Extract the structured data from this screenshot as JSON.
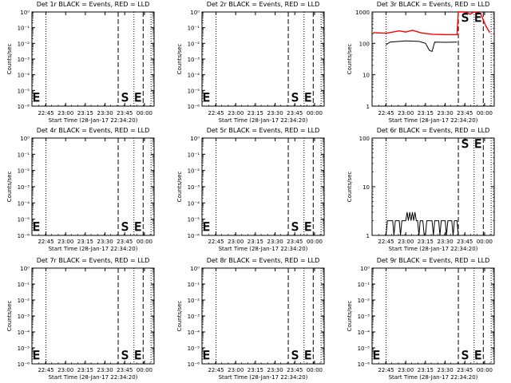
{
  "x_tick_labels": [
    "22:45",
    "23:00",
    "23:15",
    "23:30",
    "23:45",
    "00:00"
  ],
  "x_label": "Start Time (28-Jan-17 22:34:20)",
  "y_label": "Counts/sec",
  "marker_S": "S",
  "marker_E": "E",
  "colors": {
    "events": "#000000",
    "lld": "#ff0000"
  },
  "chart_data": [
    {
      "type": "line",
      "title": "Det 1r BLACK = Events, RED = LLD",
      "y_scale": "log",
      "y_tick_labels": [
        "10⁰",
        "10⁻¹",
        "10⁻²",
        "10⁻³",
        "10⁻⁴",
        "10⁻⁵",
        "10⁻⁶"
      ],
      "ylim_exp": [
        -6,
        0
      ],
      "series": [],
      "x_ticks": [
        "22:45",
        "23:00",
        "23:15",
        "23:30",
        "23:45",
        "00:00"
      ],
      "vlines": {
        "dotted": [
          "22:45",
          "23:52",
          "00:05"
        ],
        "dashed": [
          "23:40",
          "23:59"
        ]
      },
      "xlabel": "Start Time (28-Jan-17 22:34:20)",
      "ylabel": "Counts/sec"
    },
    {
      "type": "line",
      "title": "Det 2r BLACK = Events, RED = LLD",
      "y_scale": "log",
      "y_tick_labels": [
        "10⁰",
        "10⁻¹",
        "10⁻²",
        "10⁻³",
        "10⁻⁴",
        "10⁻⁵",
        "10⁻⁶"
      ],
      "ylim_exp": [
        -6,
        0
      ],
      "series": [],
      "x_ticks": [
        "22:45",
        "23:00",
        "23:15",
        "23:30",
        "23:45",
        "00:00"
      ],
      "vlines": {
        "dotted": [
          "22:45",
          "23:52",
          "00:05"
        ],
        "dashed": [
          "23:40",
          "23:59"
        ]
      },
      "xlabel": "Start Time (28-Jan-17 22:34:20)",
      "ylabel": "Counts/sec"
    },
    {
      "type": "line",
      "title": "Det 3r BLACK = Events, RED = LLD",
      "y_scale": "log",
      "y_tick_labels": [
        "1000",
        "100",
        "10",
        "1"
      ],
      "ylim_exp": [
        0,
        3
      ],
      "series": [
        {
          "color": "#ff0000",
          "points": [
            [
              "22:35",
              220
            ],
            [
              "22:45",
              210
            ],
            [
              "22:55",
              250
            ],
            [
              "23:00",
              230
            ],
            [
              "23:05",
              260
            ],
            [
              "23:12",
              215
            ],
            [
              "23:20",
              195
            ],
            [
              "23:30",
              190
            ],
            [
              "23:39",
              190
            ],
            [
              "23:40",
              1000
            ],
            [
              "23:45",
              1000
            ],
            [
              "23:49",
              850
            ],
            [
              "23:52",
              1000
            ],
            [
              "23:57",
              900
            ],
            [
              "00:01",
              350
            ],
            [
              "00:04",
              220
            ]
          ]
        },
        {
          "color": "#000000",
          "points": [
            [
              "22:45",
              90
            ],
            [
              "22:48",
              110
            ],
            [
              "23:00",
              120
            ],
            [
              "23:10",
              115
            ],
            [
              "23:15",
              100
            ],
            [
              "23:18",
              60
            ],
            [
              "23:20",
              55
            ],
            [
              "23:22",
              110
            ],
            [
              "23:30",
              108
            ],
            [
              "23:39",
              110
            ]
          ]
        }
      ],
      "x_ticks": [
        "22:45",
        "23:00",
        "23:15",
        "23:30",
        "23:45",
        "00:00"
      ],
      "vlines": {
        "dotted": [
          "22:45",
          "23:52",
          "00:05"
        ],
        "dashed": [
          "23:40",
          "23:59"
        ]
      },
      "xlabel": "Start Time (28-Jan-17 22:34:20)",
      "ylabel": "Counts/sec"
    },
    {
      "type": "line",
      "title": "Det 4r BLACK = Events, RED = LLD",
      "y_scale": "log",
      "y_tick_labels": [
        "10⁰",
        "10⁻¹",
        "10⁻²",
        "10⁻³",
        "10⁻⁴",
        "10⁻⁵",
        "10⁻⁶"
      ],
      "ylim_exp": [
        -6,
        0
      ],
      "series": [],
      "x_ticks": [
        "22:45",
        "23:00",
        "23:15",
        "23:30",
        "23:45",
        "00:00"
      ],
      "vlines": {
        "dotted": [
          "22:45",
          "23:52",
          "00:05"
        ],
        "dashed": [
          "23:40",
          "23:59"
        ]
      },
      "xlabel": "Start Time (28-Jan-17 22:34:20)",
      "ylabel": "Counts/sec"
    },
    {
      "type": "line",
      "title": "Det 5r BLACK = Events, RED = LLD",
      "y_scale": "log",
      "y_tick_labels": [
        "10⁰",
        "10⁻¹",
        "10⁻²",
        "10⁻³",
        "10⁻⁴",
        "10⁻⁵",
        "10⁻⁶"
      ],
      "ylim_exp": [
        -6,
        0
      ],
      "series": [],
      "x_ticks": [
        "22:45",
        "23:00",
        "23:15",
        "23:30",
        "23:45",
        "00:00"
      ],
      "vlines": {
        "dotted": [
          "22:45",
          "23:52",
          "00:05"
        ],
        "dashed": [
          "23:40",
          "23:59"
        ]
      },
      "xlabel": "Start Time (28-Jan-17 22:34:20)",
      "ylabel": "Counts/sec"
    },
    {
      "type": "line",
      "title": "Det 6r BLACK = Events, RED = LLD",
      "y_scale": "log",
      "y_tick_labels": [
        "100",
        "10",
        "1"
      ],
      "ylim_exp": [
        0,
        2
      ],
      "series": [
        {
          "color": "#000000",
          "points": [
            [
              "22:45",
              1
            ],
            [
              "22:46",
              2
            ],
            [
              "22:50",
              2
            ],
            [
              "22:51",
              1
            ],
            [
              "22:52",
              2
            ],
            [
              "22:55",
              2
            ],
            [
              "22:56",
              1
            ],
            [
              "22:57",
              2
            ],
            [
              "23:00",
              2
            ],
            [
              "23:01",
              3
            ],
            [
              "23:02",
              2
            ],
            [
              "23:03",
              3
            ],
            [
              "23:04",
              2
            ],
            [
              "23:05",
              3
            ],
            [
              "23:06",
              2
            ],
            [
              "23:07",
              3
            ],
            [
              "23:08",
              2
            ],
            [
              "23:09",
              2
            ],
            [
              "23:10",
              1
            ],
            [
              "23:11",
              2
            ],
            [
              "23:13",
              2
            ],
            [
              "23:14",
              1
            ],
            [
              "23:15",
              1
            ],
            [
              "23:16",
              2
            ],
            [
              "23:20",
              2
            ],
            [
              "23:21",
              1
            ],
            [
              "23:22",
              2
            ],
            [
              "23:25",
              2
            ],
            [
              "23:26",
              1
            ],
            [
              "23:27",
              2
            ],
            [
              "23:30",
              2
            ],
            [
              "23:31",
              1
            ],
            [
              "23:32",
              2
            ],
            [
              "23:35",
              2
            ],
            [
              "23:36",
              1
            ],
            [
              "23:37",
              2
            ],
            [
              "23:39",
              2
            ],
            [
              "23:40",
              1
            ]
          ]
        }
      ],
      "x_ticks": [
        "22:45",
        "23:00",
        "23:15",
        "23:30",
        "23:45",
        "00:00"
      ],
      "vlines": {
        "dotted": [
          "22:45",
          "23:52",
          "00:05"
        ],
        "dashed": [
          "23:40",
          "23:59"
        ]
      },
      "xlabel": "Start Time (28-Jan-17 22:34:20)",
      "ylabel": "Counts/sec"
    },
    {
      "type": "line",
      "title": "Det 7r BLACK = Events, RED = LLD",
      "y_scale": "log",
      "y_tick_labels": [
        "10⁰",
        "10⁻¹",
        "10⁻²",
        "10⁻³",
        "10⁻⁴",
        "10⁻⁵",
        "10⁻⁶"
      ],
      "ylim_exp": [
        -6,
        0
      ],
      "series": [],
      "x_ticks": [
        "22:45",
        "23:00",
        "23:15",
        "23:30",
        "23:45",
        "00:00"
      ],
      "vlines": {
        "dotted": [
          "22:45",
          "23:52",
          "00:05"
        ],
        "dashed": [
          "23:40",
          "23:59"
        ]
      },
      "xlabel": "Start Time (28-Jan-17 22:34:20)",
      "ylabel": "Counts/sec"
    },
    {
      "type": "line",
      "title": "Det 8r BLACK = Events, RED = LLD",
      "y_scale": "log",
      "y_tick_labels": [
        "10⁰",
        "10⁻¹",
        "10⁻²",
        "10⁻³",
        "10⁻⁴",
        "10⁻⁵",
        "10⁻⁶"
      ],
      "ylim_exp": [
        -6,
        0
      ],
      "series": [],
      "x_ticks": [
        "22:45",
        "23:00",
        "23:15",
        "23:30",
        "23:45",
        "00:00"
      ],
      "vlines": {
        "dotted": [
          "22:45",
          "23:52",
          "00:05"
        ],
        "dashed": [
          "23:40",
          "23:59"
        ]
      },
      "xlabel": "Start Time (28-Jan-17 22:34:20)",
      "ylabel": "Counts/sec"
    },
    {
      "type": "line",
      "title": "Det 9r BLACK = Events, RED = LLD",
      "y_scale": "log",
      "y_tick_labels": [
        "10⁰",
        "10⁻¹",
        "10⁻²",
        "10⁻³",
        "10⁻⁴",
        "10⁻⁵",
        "10⁻⁶"
      ],
      "ylim_exp": [
        -6,
        0
      ],
      "series": [],
      "x_ticks": [
        "22:45",
        "23:00",
        "23:15",
        "23:30",
        "23:45",
        "00:00"
      ],
      "vlines": {
        "dotted": [
          "22:45",
          "23:52",
          "00:05"
        ],
        "dashed": [
          "23:40",
          "23:59"
        ]
      },
      "xlabel": "Start Time (28-Jan-17 22:34:20)",
      "ylabel": "Counts/sec"
    }
  ]
}
